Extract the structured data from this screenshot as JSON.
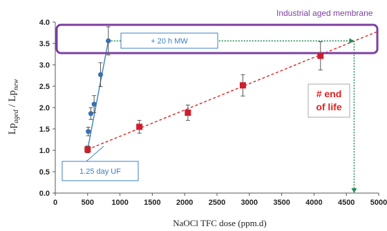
{
  "chart_data": {
    "type": "scatter",
    "xlabel": "NaOCl TFC dose (ppm.d)",
    "ylabel_main": "Lp",
    "ylabel_sub1": "aged",
    "ylabel_sep": " / Lp",
    "ylabel_sub2": "new",
    "xlim": [
      0,
      5000
    ],
    "ylim": [
      0.0,
      4.0
    ],
    "x_ticks": [
      "0",
      "500",
      "1000",
      "1500",
      "2000",
      "2500",
      "3000",
      "3500",
      "4000",
      "4500",
      "5000"
    ],
    "y_ticks": [
      "0.0",
      "0.5",
      "1.0",
      "1.5",
      "2.0",
      "2.5",
      "3.0",
      "3.5",
      "4.0"
    ],
    "grid": false,
    "series": [
      {
        "marker": "circle",
        "color": "#3a6fb0",
        "points": [
          {
            "x": 500,
            "y": 1.02,
            "err": 0.07
          },
          {
            "x": 510,
            "y": 1.44,
            "err": 0.1
          },
          {
            "x": 550,
            "y": 1.86,
            "err": 0.14
          },
          {
            "x": 600,
            "y": 2.08,
            "err": 0.2
          },
          {
            "x": 700,
            "y": 2.77,
            "err": 0.28
          },
          {
            "x": 820,
            "y": 3.56,
            "err": 0.33
          }
        ]
      },
      {
        "marker": "square",
        "color": "#cc1f2e",
        "points": [
          {
            "x": 500,
            "y": 1.02,
            "err": 0.08
          },
          {
            "x": 1300,
            "y": 1.55,
            "err": 0.15
          },
          {
            "x": 2050,
            "y": 1.88,
            "err": 0.18
          },
          {
            "x": 2900,
            "y": 2.52,
            "err": 0.25
          },
          {
            "x": 4100,
            "y": 3.21,
            "err": 0.33
          }
        ]
      }
    ],
    "fit_lines": [
      {
        "color": "#e02020",
        "dash": true,
        "from": [
          500,
          1.02
        ],
        "to": [
          5000,
          3.79
        ]
      },
      {
        "color": "#3a80c0",
        "dash": false,
        "from": [
          500,
          1.02
        ],
        "to": [
          820,
          3.56
        ]
      }
    ],
    "guides": [
      {
        "color": "#2a8a5a",
        "from": [
          820,
          3.56
        ],
        "to": [
          4620,
          3.56
        ]
      },
      {
        "color": "#2a8a5a",
        "from": [
          4620,
          3.56
        ],
        "to": [
          4620,
          0.0
        ]
      }
    ],
    "annotations": {
      "industrial": "Industrial  aged membrane",
      "mw": "+ 20 h MW",
      "uf": "1.25 day UF",
      "eol_line1": "# end",
      "eol_line2": "of life"
    },
    "annotation_colors": {
      "purple": "#7b3fa0",
      "blue": "#3a7fc0",
      "red": "#e02020"
    }
  }
}
